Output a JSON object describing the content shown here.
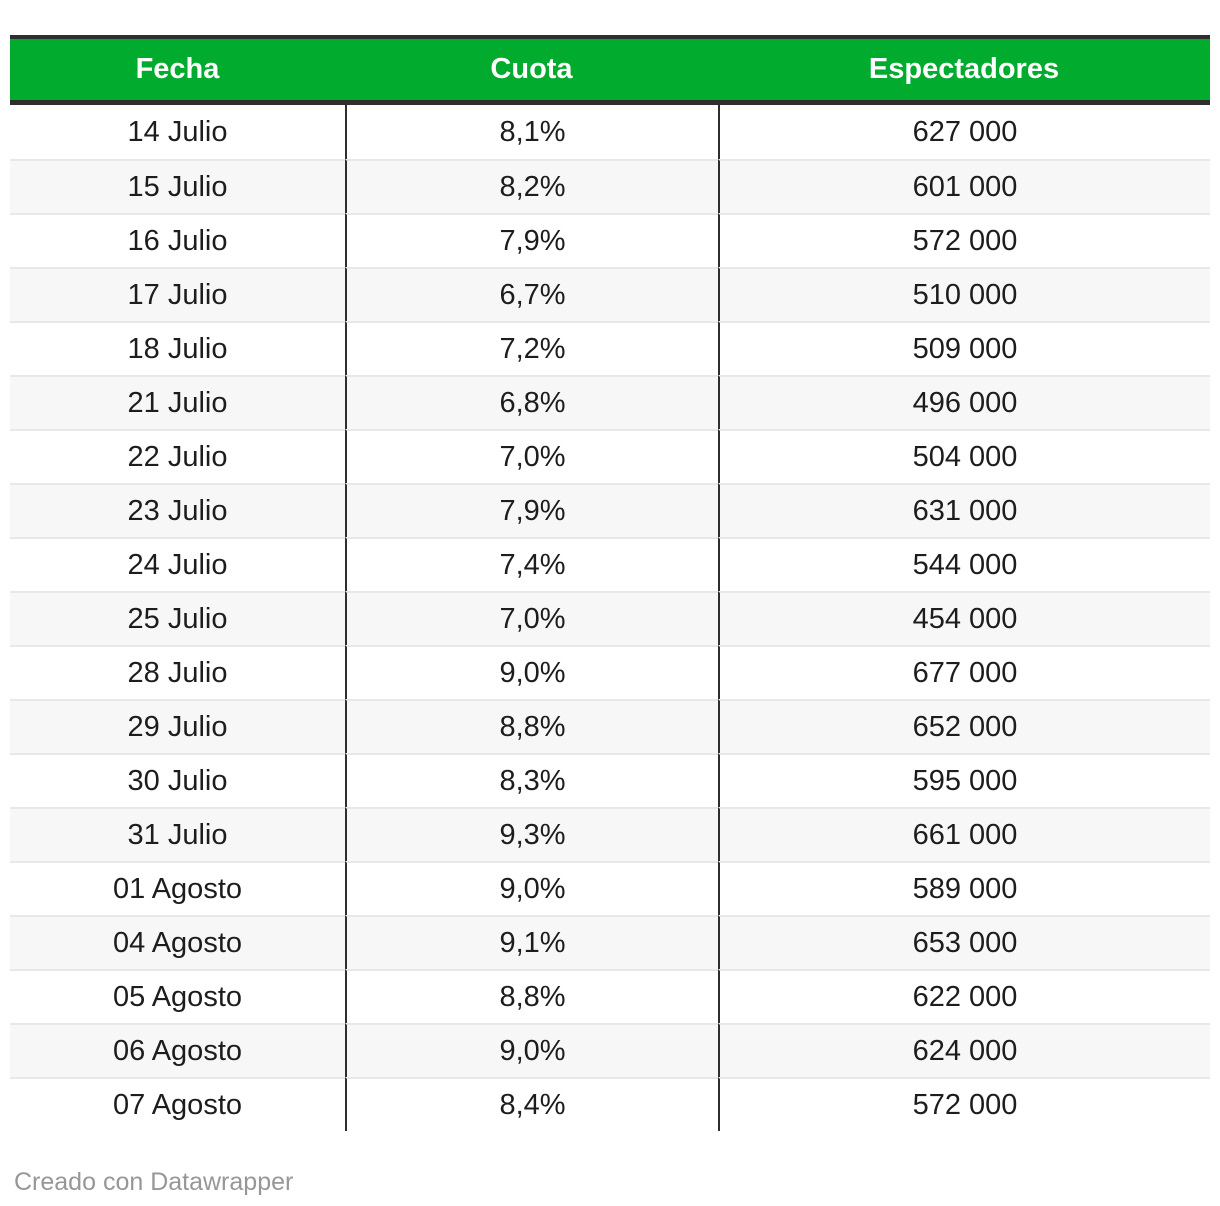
{
  "chart_data": {
    "type": "table",
    "columns": [
      "Fecha",
      "Cuota",
      "Espectadores"
    ],
    "rows": [
      [
        "14 Julio",
        "8,1%",
        "627 000"
      ],
      [
        "15 Julio",
        "8,2%",
        "601 000"
      ],
      [
        "16 Julio",
        "7,9%",
        "572 000"
      ],
      [
        "17 Julio",
        "6,7%",
        "510 000"
      ],
      [
        "18 Julio",
        "7,2%",
        "509 000"
      ],
      [
        "21 Julio",
        "6,8%",
        "496 000"
      ],
      [
        "22 Julio",
        "7,0%",
        "504 000"
      ],
      [
        "23 Julio",
        "7,9%",
        "631 000"
      ],
      [
        "24 Julio",
        "7,4%",
        "544 000"
      ],
      [
        "25 Julio",
        "7,0%",
        "454 000"
      ],
      [
        "28 Julio",
        "9,0%",
        "677 000"
      ],
      [
        "29 Julio",
        "8,8%",
        "652 000"
      ],
      [
        "30 Julio",
        "8,3%",
        "595 000"
      ],
      [
        "31 Julio",
        "9,3%",
        "661 000"
      ],
      [
        "01 Agosto",
        "9,0%",
        "589 000"
      ],
      [
        "04 Agosto",
        "9,1%",
        "653 000"
      ],
      [
        "05 Agosto",
        "8,8%",
        "622 000"
      ],
      [
        "06 Agosto",
        "9,0%",
        "624 000"
      ],
      [
        "07 Agosto",
        "8,4%",
        "572 000"
      ]
    ],
    "layout": {
      "striped": true,
      "header_position": "top",
      "column_alignment": [
        "center",
        "center",
        "center"
      ]
    }
  },
  "footer": {
    "credit": "Creado con Datawrapper"
  },
  "colors": {
    "header_bg": "#00ab2d",
    "header_text": "#ffffff",
    "header_border": "#2e2e2e",
    "column_divider": "#2e2e2e",
    "row_divider": "#e8e8e8",
    "row_alt_bg": "#f7f7f7",
    "body_text": "#1d1d1d",
    "footer_text": "#979797",
    "page_bg": "#ffffff"
  }
}
